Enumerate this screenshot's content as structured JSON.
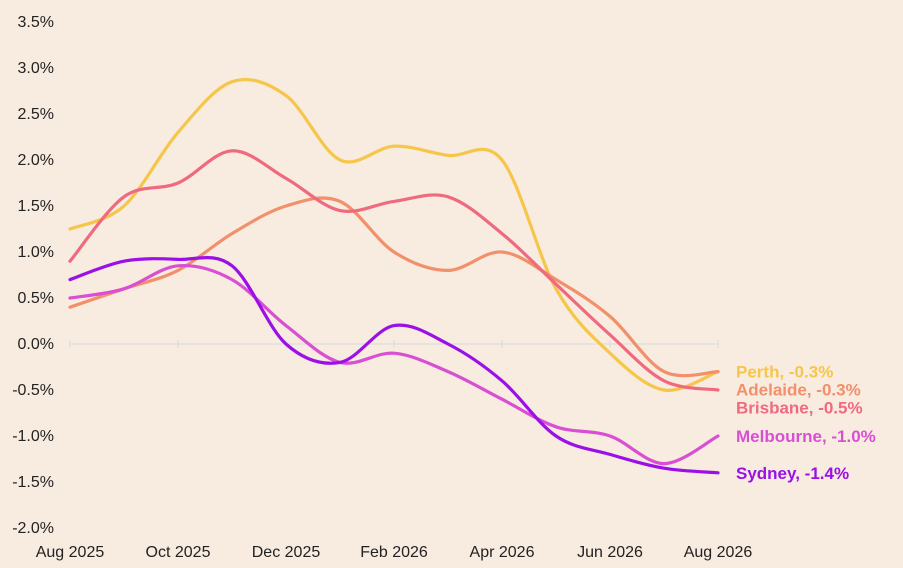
{
  "chart_data": {
    "type": "line",
    "title": "",
    "xlabel": "",
    "ylabel": "",
    "ylim": [
      -2.0,
      3.5
    ],
    "yticks": [
      "3.5%",
      "3.0%",
      "2.5%",
      "2.0%",
      "1.5%",
      "1.0%",
      "0.5%",
      "0.0%",
      "-0.5%",
      "-1.0%",
      "-1.5%",
      "-2.0%"
    ],
    "ytick_values": [
      3.5,
      3.0,
      2.5,
      2.0,
      1.5,
      1.0,
      0.5,
      0.0,
      -0.5,
      -1.0,
      -1.5,
      -2.0
    ],
    "xticks": [
      "Aug 2025",
      "Oct 2025",
      "Dec 2025",
      "Feb 2026",
      "Apr 2026",
      "Jun 2026",
      "Aug 2026"
    ],
    "xtick_values": [
      "2025-08",
      "2025-10",
      "2025-12",
      "2026-02",
      "2026-04",
      "2026-06",
      "2026-08"
    ],
    "zero_line": true,
    "grid": false,
    "legend": "end-of-line labels",
    "x": [
      "2025-08",
      "2025-09",
      "2025-10",
      "2025-11",
      "2025-12",
      "2026-01",
      "2026-02",
      "2026-03",
      "2026-04",
      "2026-05",
      "2026-06",
      "2026-07",
      "2026-08"
    ],
    "series": [
      {
        "name": "Perth",
        "end_label": "Perth, -0.3%",
        "color": "#f6c64a",
        "values": [
          1.25,
          1.5,
          2.3,
          2.85,
          2.7,
          2.0,
          2.15,
          2.05,
          2.0,
          0.6,
          -0.1,
          -0.5,
          -0.3
        ]
      },
      {
        "name": "Adelaide",
        "end_label": "Adelaide, -0.3%",
        "color": "#f1906a",
        "values": [
          0.4,
          0.6,
          0.8,
          1.2,
          1.5,
          1.55,
          1.0,
          0.8,
          1.0,
          0.7,
          0.3,
          -0.3,
          -0.3
        ]
      },
      {
        "name": "Brisbane",
        "end_label": "Brisbane, -0.5%",
        "color": "#ef6a7e",
        "values": [
          0.9,
          1.6,
          1.75,
          2.1,
          1.8,
          1.45,
          1.55,
          1.6,
          1.2,
          0.65,
          0.1,
          -0.4,
          -0.5
        ]
      },
      {
        "name": "Melbourne",
        "end_label": "Melbourne, -1.0%",
        "color": "#d94fd4",
        "values": [
          0.5,
          0.6,
          0.85,
          0.7,
          0.2,
          -0.2,
          -0.1,
          -0.3,
          -0.6,
          -0.9,
          -1.0,
          -1.3,
          -1.0
        ]
      },
      {
        "name": "Sydney",
        "end_label": "Sydney, -1.4%",
        "color": "#9b10e6",
        "values": [
          0.7,
          0.9,
          0.92,
          0.85,
          0.0,
          -0.2,
          0.2,
          0.0,
          -0.4,
          -1.0,
          -1.2,
          -1.35,
          -1.4
        ]
      }
    ]
  }
}
